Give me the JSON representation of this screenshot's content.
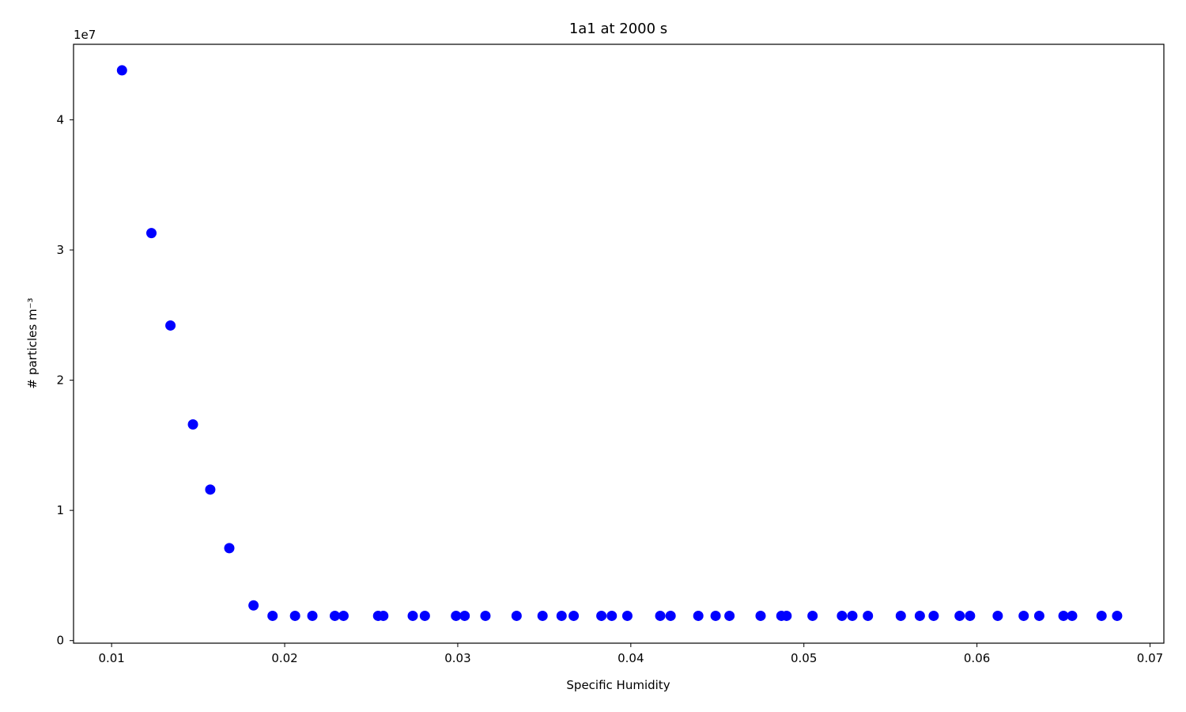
{
  "chart_data": {
    "type": "scatter",
    "title": "1a1 at 2000 s",
    "xlabel": "Specific Humidity",
    "ylabel": "# particles m⁻³",
    "y_offset_label": "1e7",
    "xlim": [
      0.0078,
      0.0708
    ],
    "ylim": [
      -0.02,
      4.58
    ],
    "y_scale_note": "values in units of 1e7",
    "x_ticks": [
      0.01,
      0.02,
      0.03,
      0.04,
      0.05,
      0.06,
      0.07
    ],
    "x_tick_labels": [
      "0.01",
      "0.02",
      "0.03",
      "0.04",
      "0.05",
      "0.06",
      "0.07"
    ],
    "y_ticks": [
      0,
      1,
      2,
      3,
      4
    ],
    "y_tick_labels": [
      "0",
      "1",
      "2",
      "3",
      "4"
    ],
    "grid": false,
    "marker_color": "#0000ff",
    "series": [
      {
        "x": [
          0.0106,
          0.0123,
          0.0134,
          0.0147,
          0.0157,
          0.0168,
          0.0182,
          0.0193,
          0.0206,
          0.0216,
          0.0229,
          0.0234,
          0.0254,
          0.0257,
          0.0274,
          0.0281,
          0.0299,
          0.0304,
          0.0316,
          0.0334,
          0.0349,
          0.036,
          0.0367,
          0.0383,
          0.0389,
          0.0398,
          0.0417,
          0.0423,
          0.0439,
          0.0449,
          0.0457,
          0.0475,
          0.0487,
          0.049,
          0.0505,
          0.0522,
          0.0528,
          0.0537,
          0.0556,
          0.0567,
          0.0575,
          0.059,
          0.0596,
          0.0612,
          0.0627,
          0.0636,
          0.065,
          0.0655,
          0.0672,
          0.0681
        ],
        "y": [
          4.38,
          3.13,
          2.42,
          1.66,
          1.16,
          0.71,
          0.27,
          0.19,
          0.19,
          0.19,
          0.19,
          0.19,
          0.19,
          0.19,
          0.19,
          0.19,
          0.19,
          0.19,
          0.19,
          0.19,
          0.19,
          0.19,
          0.19,
          0.19,
          0.19,
          0.19,
          0.19,
          0.19,
          0.19,
          0.19,
          0.19,
          0.19,
          0.19,
          0.19,
          0.19,
          0.19,
          0.19,
          0.19,
          0.19,
          0.19,
          0.19,
          0.19,
          0.19,
          0.19,
          0.19,
          0.19,
          0.19,
          0.19,
          0.19,
          0.19
        ]
      }
    ]
  }
}
